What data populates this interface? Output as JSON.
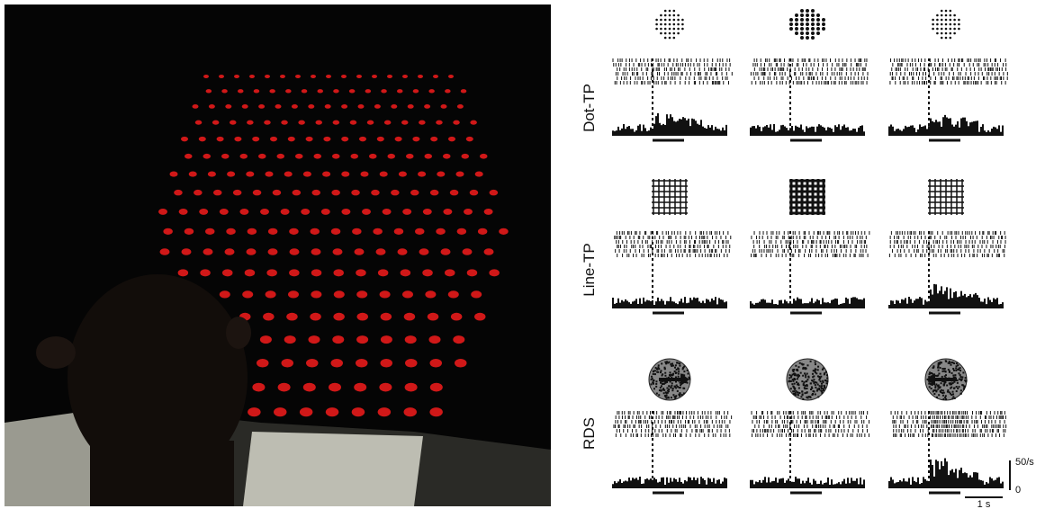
{
  "figure": {
    "rows": [
      {
        "label": "Dot-TP"
      },
      {
        "label": "Line-TP"
      },
      {
        "label": "RDS"
      }
    ],
    "scale": {
      "rate": "50/s",
      "zero": "0",
      "time": "1 s"
    }
  }
}
